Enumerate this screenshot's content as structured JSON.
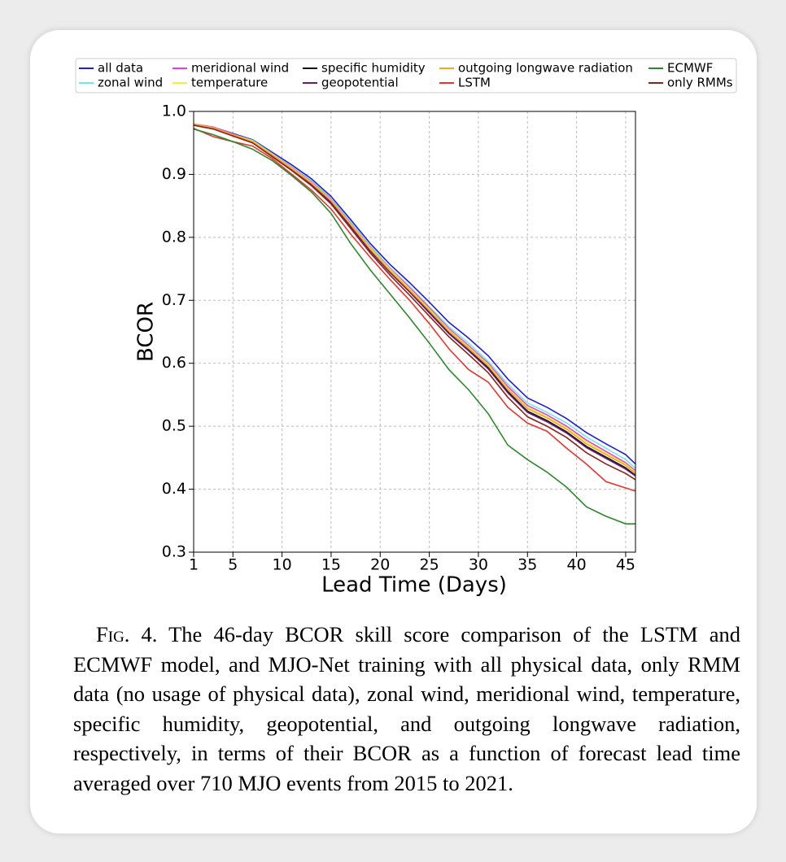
{
  "chart_data": {
    "type": "line",
    "xlabel": "Lead Time (Days)",
    "ylabel": "BCOR",
    "x": [
      1,
      3,
      5,
      7,
      9,
      11,
      13,
      15,
      17,
      19,
      21,
      23,
      25,
      27,
      29,
      31,
      33,
      35,
      37,
      39,
      41,
      43,
      45,
      46
    ],
    "xlim": [
      1,
      46
    ],
    "xticks": [
      1,
      5,
      10,
      15,
      20,
      25,
      30,
      35,
      40,
      45
    ],
    "ylim": [
      0.3,
      1
    ],
    "yticks": [
      0.3,
      0.4,
      0.5,
      0.6,
      0.7,
      0.8,
      0.9,
      {
        "value": 1,
        "label": "1.0"
      }
    ],
    "grid": true,
    "legend": "top",
    "series": [
      {
        "name": "all data",
        "color": "#1f1fd6",
        "values": [
          0.98,
          0.975,
          0.965,
          0.955,
          0.935,
          0.915,
          0.893,
          0.865,
          0.828,
          0.79,
          0.757,
          0.728,
          0.697,
          0.665,
          0.64,
          0.612,
          0.575,
          0.545,
          0.53,
          0.512,
          0.49,
          0.472,
          0.455,
          0.44
        ]
      },
      {
        "name": "zonal wind",
        "color": "#6ee8ee",
        "values": [
          0.98,
          0.975,
          0.964,
          0.954,
          0.933,
          0.912,
          0.89,
          0.862,
          0.824,
          0.786,
          0.752,
          0.722,
          0.69,
          0.658,
          0.632,
          0.603,
          0.567,
          0.537,
          0.522,
          0.505,
          0.483,
          0.465,
          0.447,
          0.433
        ]
      },
      {
        "name": "meridional wind",
        "color": "#e83be8",
        "values": [
          0.98,
          0.975,
          0.964,
          0.953,
          0.932,
          0.911,
          0.888,
          0.86,
          0.822,
          0.784,
          0.75,
          0.72,
          0.688,
          0.655,
          0.628,
          0.6,
          0.563,
          0.533,
          0.518,
          0.5,
          0.478,
          0.46,
          0.442,
          0.429
        ]
      },
      {
        "name": "temperature",
        "color": "#f2f03a",
        "values": [
          0.98,
          0.974,
          0.963,
          0.953,
          0.932,
          0.91,
          0.887,
          0.859,
          0.821,
          0.783,
          0.749,
          0.718,
          0.686,
          0.653,
          0.626,
          0.598,
          0.56,
          0.53,
          0.515,
          0.497,
          0.475,
          0.457,
          0.44,
          0.427
        ]
      },
      {
        "name": "specific humidity",
        "color": "#111111",
        "values": [
          0.979,
          0.973,
          0.962,
          0.951,
          0.93,
          0.908,
          0.885,
          0.856,
          0.818,
          0.779,
          0.745,
          0.714,
          0.681,
          0.648,
          0.621,
          0.593,
          0.555,
          0.524,
          0.509,
          0.491,
          0.468,
          0.451,
          0.434,
          0.422
        ]
      },
      {
        "name": "geopotential",
        "color": "#6a1b7a",
        "values": [
          0.979,
          0.973,
          0.962,
          0.951,
          0.93,
          0.908,
          0.884,
          0.855,
          0.817,
          0.778,
          0.744,
          0.713,
          0.68,
          0.647,
          0.62,
          0.591,
          0.553,
          0.522,
          0.507,
          0.489,
          0.466,
          0.449,
          0.432,
          0.421
        ]
      },
      {
        "name": "outgoing longwave radiation",
        "color": "#f5a623",
        "values": [
          0.98,
          0.974,
          0.963,
          0.952,
          0.931,
          0.909,
          0.886,
          0.858,
          0.82,
          0.781,
          0.747,
          0.716,
          0.684,
          0.651,
          0.624,
          0.596,
          0.558,
          0.528,
          0.513,
          0.495,
          0.472,
          0.455,
          0.438,
          0.425
        ]
      },
      {
        "name": "LSTM",
        "color": "#e8352e",
        "values": [
          0.973,
          0.96,
          0.952,
          0.945,
          0.925,
          0.9,
          0.875,
          0.845,
          0.805,
          0.768,
          0.733,
          0.7,
          0.663,
          0.623,
          0.59,
          0.57,
          0.53,
          0.505,
          0.492,
          0.465,
          0.44,
          0.412,
          0.402,
          0.397
        ]
      },
      {
        "name": "ECMWF",
        "color": "#2a8a2a",
        "values": [
          0.972,
          0.963,
          0.952,
          0.94,
          0.922,
          0.898,
          0.872,
          0.838,
          0.79,
          0.748,
          0.71,
          0.672,
          0.632,
          0.59,
          0.558,
          0.52,
          0.47,
          0.447,
          0.427,
          0.403,
          0.372,
          0.357,
          0.345,
          0.345
        ]
      },
      {
        "name": "only RMMs",
        "color": "#8b2318",
        "values": [
          0.978,
          0.972,
          0.961,
          0.95,
          0.928,
          0.906,
          0.882,
          0.853,
          0.814,
          0.775,
          0.74,
          0.708,
          0.675,
          0.642,
          0.614,
          0.585,
          0.546,
          0.515,
          0.5,
          0.482,
          0.458,
          0.44,
          0.425,
          0.415
        ]
      }
    ]
  },
  "caption_label": "Fig. 4.",
  "caption": "The 46-day BCOR skill score comparison of the LSTM and ECMWF model, and MJO-Net training with all physical data, only RMM data (no usage of physical data), zonal wind, meridional wind, temperature, specific humidity, geopotential, and outgoing longwave radiation, respectively, in terms of their BCOR as a function of forecast lead time averaged over 710 MJO events from 2015 to 2021."
}
